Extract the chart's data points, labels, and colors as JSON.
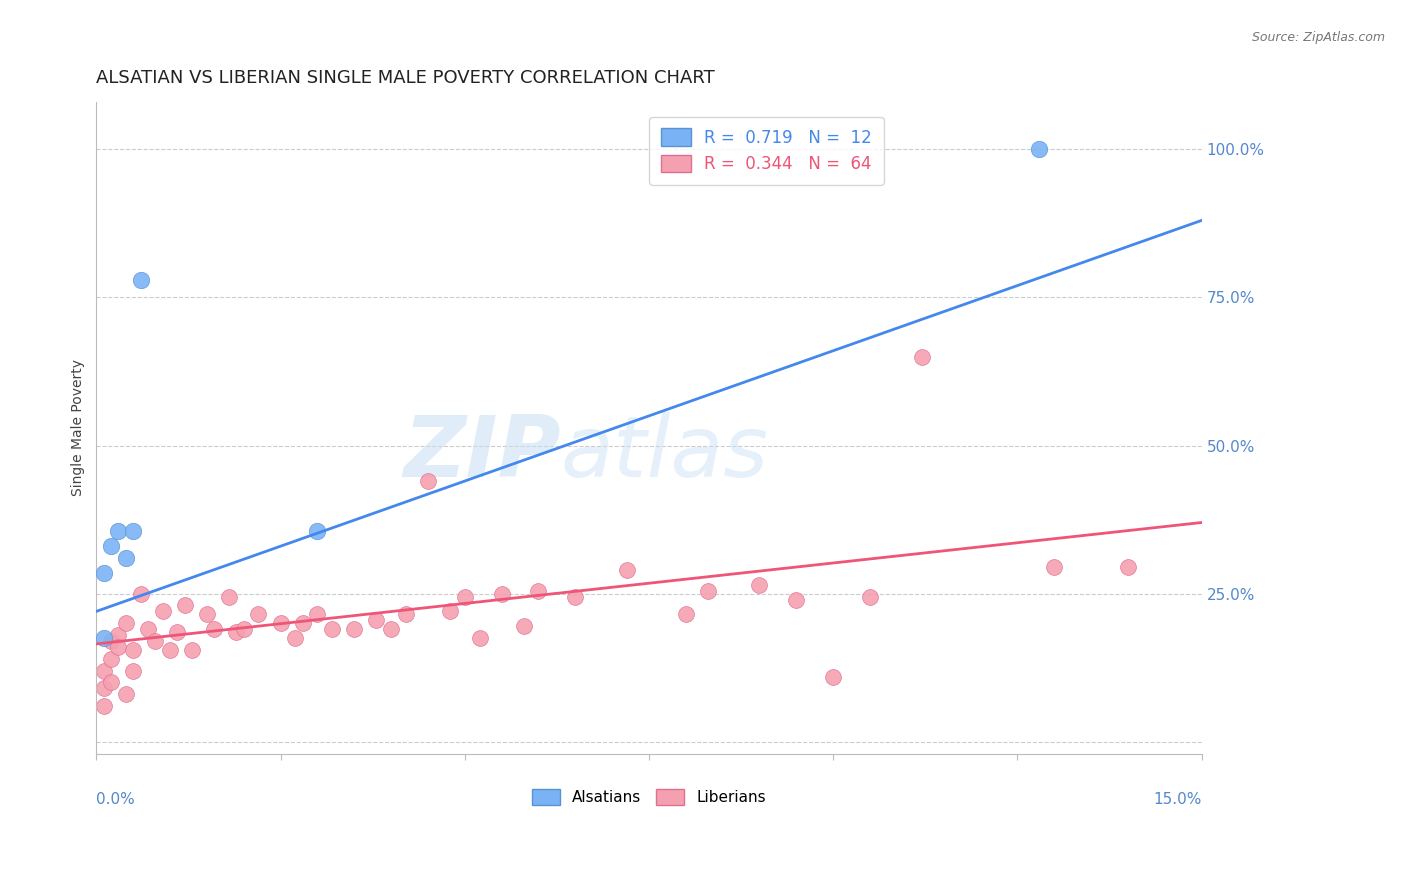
{
  "title": "ALSATIAN VS LIBERIAN SINGLE MALE POVERTY CORRELATION CHART",
  "source": "Source: ZipAtlas.com",
  "ylabel": "Single Male Poverty",
  "yticks": [
    0.0,
    0.25,
    0.5,
    0.75,
    1.0
  ],
  "ytick_labels": [
    "",
    "25.0%",
    "50.0%",
    "75.0%",
    "100.0%"
  ],
  "xmin": 0.0,
  "xmax": 0.15,
  "ymin": -0.02,
  "ymax": 1.08,
  "alsatians_x": [
    0.001,
    0.001,
    0.002,
    0.003,
    0.004,
    0.005,
    0.006,
    0.03,
    0.128
  ],
  "alsatians_y": [
    0.175,
    0.285,
    0.33,
    0.355,
    0.31,
    0.355,
    0.78,
    0.355,
    1.0
  ],
  "liberians_x": [
    0.001,
    0.001,
    0.001,
    0.002,
    0.002,
    0.002,
    0.003,
    0.003,
    0.004,
    0.004,
    0.005,
    0.005,
    0.006,
    0.007,
    0.008,
    0.009,
    0.01,
    0.011,
    0.012,
    0.013,
    0.015,
    0.016,
    0.018,
    0.019,
    0.02,
    0.022,
    0.025,
    0.027,
    0.028,
    0.03,
    0.032,
    0.035,
    0.038,
    0.04,
    0.042,
    0.045,
    0.048,
    0.05,
    0.052,
    0.055,
    0.058,
    0.06,
    0.065,
    0.072,
    0.08,
    0.083,
    0.09,
    0.095,
    0.1,
    0.105,
    0.112,
    0.13,
    0.14
  ],
  "liberians_y": [
    0.09,
    0.12,
    0.06,
    0.14,
    0.17,
    0.1,
    0.18,
    0.16,
    0.2,
    0.08,
    0.12,
    0.155,
    0.25,
    0.19,
    0.17,
    0.22,
    0.155,
    0.185,
    0.23,
    0.155,
    0.215,
    0.19,
    0.245,
    0.185,
    0.19,
    0.215,
    0.2,
    0.175,
    0.2,
    0.215,
    0.19,
    0.19,
    0.205,
    0.19,
    0.215,
    0.44,
    0.22,
    0.245,
    0.175,
    0.25,
    0.195,
    0.255,
    0.245,
    0.29,
    0.215,
    0.255,
    0.265,
    0.24,
    0.11,
    0.245,
    0.65,
    0.295,
    0.295
  ],
  "blue_line_x": [
    0.0,
    0.15
  ],
  "blue_line_y": [
    0.22,
    0.88
  ],
  "pink_line_x": [
    0.0,
    0.15
  ],
  "pink_line_y": [
    0.165,
    0.37
  ],
  "alsatian_color": "#7ab3f5",
  "alsatian_edge": "#5a93d5",
  "liberian_color": "#f5a0b0",
  "liberian_edge": "#e07090",
  "blue_line_color": "#4488ee",
  "pink_line_color": "#ee5577",
  "background_color": "#ffffff",
  "title_fontsize": 13,
  "axis_label_fontsize": 10,
  "tick_fontsize": 11,
  "watermark_zip": "ZIP",
  "watermark_atlas": "atlas",
  "grid_color": "#cccccc",
  "ytick_color": "#5588cc",
  "xtick_color": "#5588cc"
}
